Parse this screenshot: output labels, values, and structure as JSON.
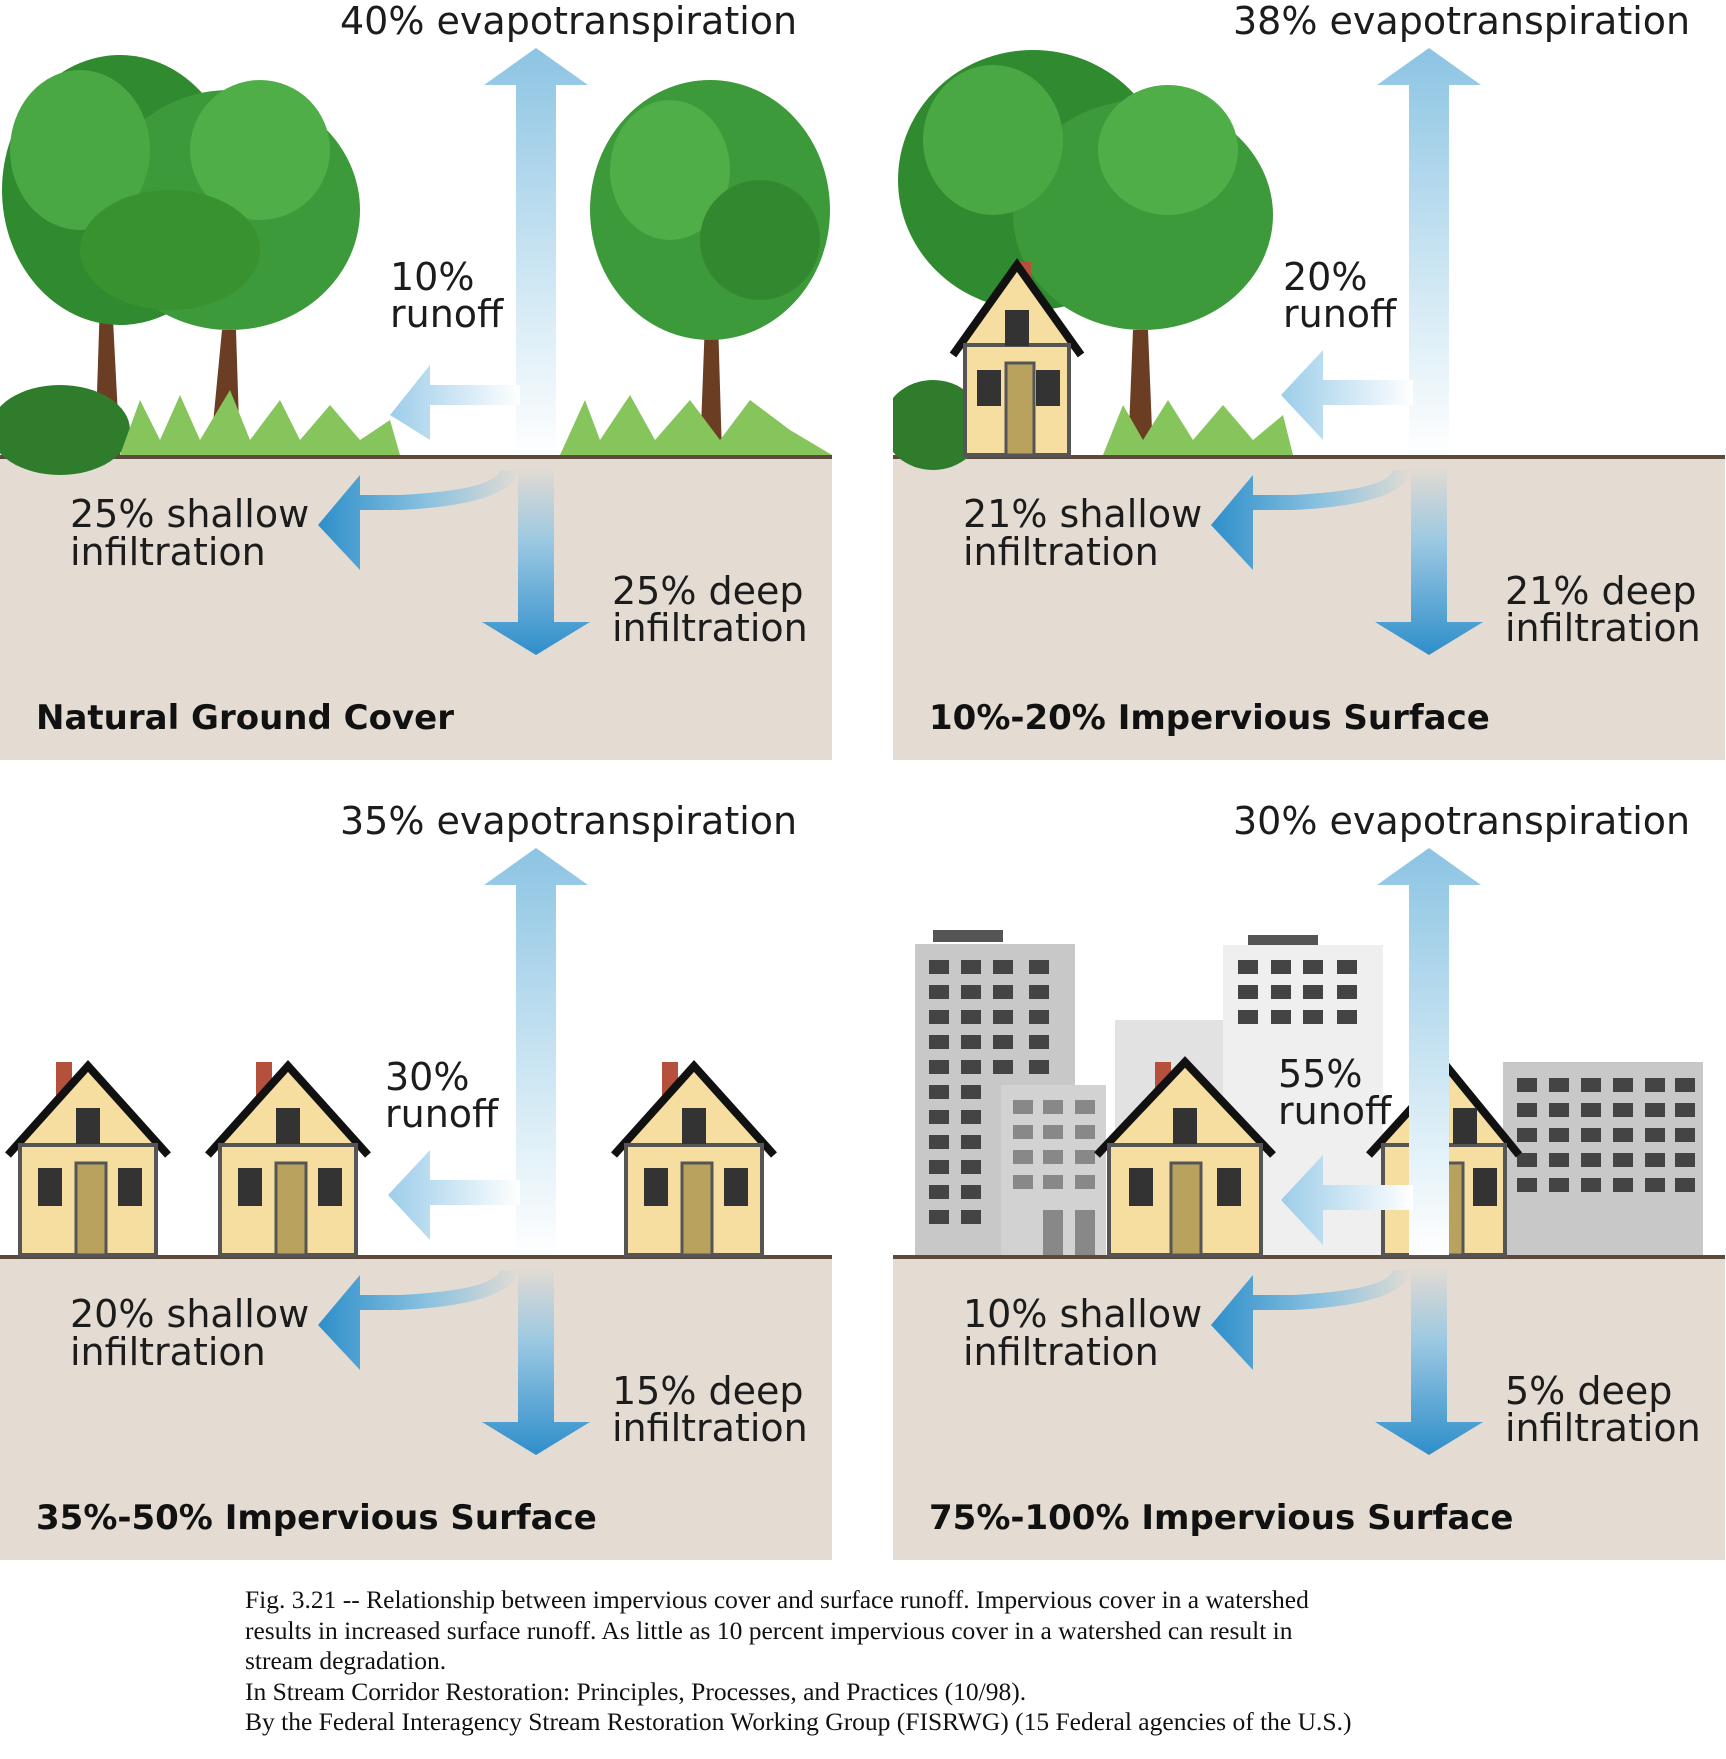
{
  "panels": [
    {
      "title": "Natural Ground Cover",
      "evapotranspiration": "40% evapotranspiration",
      "runoff_pct": "10%",
      "runoff_word": "runoff",
      "shallow_1": "25% shallow",
      "shallow_2": "infiltration",
      "deep_1": "25% deep",
      "deep_2": "infiltration",
      "scene": "trees"
    },
    {
      "title": "10%-20% Impervious Surface",
      "evapotranspiration": "38% evapotranspiration",
      "runoff_pct": "20%",
      "runoff_word": "runoff",
      "shallow_1": "21% shallow",
      "shallow_2": "infiltration",
      "deep_1": "21% deep",
      "deep_2": "infiltration",
      "scene": "tree-house"
    },
    {
      "title": "35%-50% Impervious Surface",
      "evapotranspiration": "35% evapotranspiration",
      "runoff_pct": "30%",
      "runoff_word": "runoff",
      "shallow_1": "20% shallow",
      "shallow_2": "infiltration",
      "deep_1": "15% deep",
      "deep_2": "infiltration",
      "scene": "houses"
    },
    {
      "title": "75%-100% Impervious Surface",
      "evapotranspiration": "30% evapotranspiration",
      "runoff_pct": "55%",
      "runoff_word": "runoff",
      "shallow_1": "10% shallow",
      "shallow_2": "infiltration",
      "deep_1": "5% deep",
      "deep_2": "infiltration",
      "scene": "city"
    }
  ],
  "caption": {
    "line1": "Fig. 3.21 -- Relationship between impervious cover and surface runoff.  Impervious cover in a watershed",
    "line2": "results in increased surface runoff.  As little as 10 percent impervious cover in a watershed can result in",
    "line3": "stream degradation.",
    "line4": "In Stream Corridor Restoration:  Principles, Processes, and Practices (10/98).",
    "line5": "By the Federal Interagency Stream Restoration Working Group (FISRWG) (15 Federal agencies of the U.S.)"
  },
  "colors": {
    "soil": "#e4dcd2",
    "ground_line": "#5e4a3c",
    "arrow_blue": "#3b95c9",
    "arrow_light": "#a9d3ea",
    "tree_green": "#3d9a3a",
    "house_wall": "#f6dea0",
    "building_gray": "#c8c8c8"
  }
}
